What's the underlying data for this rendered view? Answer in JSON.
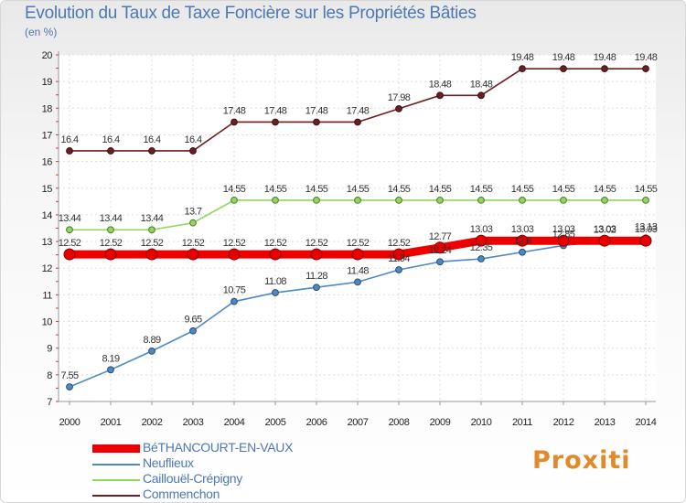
{
  "title": "Evolution du Taux de Taxe Foncière sur les Propriétés Bâties",
  "subtitle": "(en %)",
  "logo": "Proxiti",
  "chart_data": {
    "type": "line",
    "x": [
      2000,
      2001,
      2002,
      2003,
      2004,
      2005,
      2006,
      2007,
      2008,
      2009,
      2010,
      2011,
      2012,
      2013,
      2014
    ],
    "ylim": [
      7,
      20
    ],
    "yticks": [
      7,
      8,
      9,
      10,
      11,
      12,
      13,
      14,
      15,
      16,
      17,
      18,
      19,
      20
    ],
    "grid": true,
    "legend_position": "bottom-left",
    "series": [
      {
        "name": "Commenchon",
        "color": "#6b1f23",
        "values": [
          16.4,
          16.4,
          16.4,
          16.4,
          17.48,
          17.48,
          17.48,
          17.48,
          17.98,
          18.48,
          18.48,
          19.48,
          19.48,
          19.48,
          19.48
        ],
        "labels": [
          "16.4",
          "16.4",
          "16.4",
          "16.4",
          "17.48",
          "17.48",
          "17.48",
          "17.48",
          "17.98",
          "18.48",
          "18.48",
          "19.48",
          "19.48",
          "19.48",
          "19.48"
        ]
      },
      {
        "name": "Caillouël-Crépigny",
        "color": "#8fd85a",
        "values": [
          13.44,
          13.44,
          13.44,
          13.7,
          14.55,
          14.55,
          14.55,
          14.55,
          14.55,
          14.55,
          14.55,
          14.55,
          14.55,
          14.55,
          14.55
        ],
        "labels": [
          "13.44",
          "13.44",
          "13.44",
          "13.7",
          "14.55",
          "14.55",
          "14.55",
          "14.55",
          "14.55",
          "14.55",
          "14.55",
          "14.55",
          "14.55",
          "14.55",
          "14.55"
        ]
      },
      {
        "name": "Neuflieux",
        "color": "#4d88c8",
        "values": [
          7.55,
          8.19,
          8.89,
          9.65,
          10.75,
          11.08,
          11.28,
          11.48,
          11.94,
          12.24,
          12.35,
          12.6,
          12.85,
          13.02,
          13.13
        ],
        "labels": [
          "7.55",
          "8.19",
          "8.89",
          "9.65",
          "10.75",
          "11.08",
          "11.28",
          "11.48",
          "11.94",
          "12.24",
          "12.35",
          "12.6",
          "12.85",
          "13.02",
          "13.13"
        ]
      },
      {
        "name": "BéTHANCOURT-EN-VAUX",
        "color": "#ee0000",
        "values": [
          12.52,
          12.52,
          12.52,
          12.52,
          12.52,
          12.52,
          12.52,
          12.52,
          12.52,
          12.77,
          13.03,
          13.03,
          13.03,
          13.03,
          13.03
        ],
        "labels": [
          "12.52",
          "12.52",
          "12.52",
          "12.52",
          "12.52",
          "12.52",
          "12.52",
          "12.52",
          "12.52",
          "12.77",
          "13.03",
          "13.03",
          "13.03",
          "13.03",
          "13.03"
        ]
      }
    ],
    "legend": [
      "BéTHANCOURT-EN-VAUX",
      "Neuflieux",
      "Caillouël-Crépigny",
      "Commenchon"
    ]
  }
}
